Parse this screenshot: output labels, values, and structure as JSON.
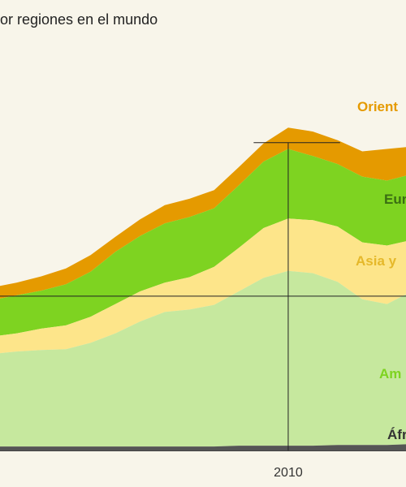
{
  "subtitle": "or regiones en el mundo",
  "colors": {
    "background": "#f8f5ea",
    "orient": "#e59a00",
    "europa": "#7ed321",
    "asia": "#fde58a",
    "america": "#c6e89e",
    "africa": "#555555"
  },
  "chart_data": {
    "type": "area",
    "stacked": true,
    "title": "",
    "xlabel": "",
    "ylabel": "",
    "x": [
      1998,
      1999,
      2000,
      2001,
      2002,
      2003,
      2004,
      2005,
      2006,
      2007,
      2008,
      2009,
      2010,
      2011,
      2012,
      2013,
      2014,
      2015
    ],
    "xlim": [
      1998,
      2015
    ],
    "ylim": [
      0,
      400
    ],
    "x_ticks": [
      {
        "value": 2010,
        "label": "2010"
      }
    ],
    "reference_lines": {
      "horizontal_y": 195,
      "vertical_x": 2010,
      "top_marker": {
        "x_start": 2008.6,
        "x_end": 2012.1,
        "y": 389
      }
    },
    "series": [
      {
        "name": "Áfr",
        "color": "#555555",
        "values": [
          5,
          5,
          5,
          5,
          5,
          5,
          5,
          5,
          5,
          5,
          6,
          6,
          6,
          6,
          7,
          7,
          7,
          8
        ]
      },
      {
        "name": "Am",
        "color": "#c6e89e",
        "values": [
          117,
          120,
          122,
          123,
          131,
          143,
          158,
          170,
          173,
          179,
          195,
          212,
          221,
          218,
          206,
          184,
          178,
          193
        ]
      },
      {
        "name": "Asia y",
        "color": "#fde58a",
        "values": [
          22,
          23,
          27,
          30,
          33,
          37,
          38,
          37,
          41,
          48,
          55,
          63,
          66,
          67,
          70,
          72,
          74,
          65
        ]
      },
      {
        "name": "Eur",
        "color": "#7ed321",
        "values": [
          46,
          48,
          48,
          52,
          57,
          66,
          70,
          75,
          76,
          74,
          79,
          84,
          88,
          81,
          79,
          83,
          82,
          83
        ]
      },
      {
        "name": "Orient",
        "color": "#e59a00",
        "values": [
          16,
          16,
          18,
          20,
          21,
          19,
          21,
          23,
          23,
          23,
          23,
          23,
          27,
          31,
          30,
          32,
          40,
          35
        ]
      }
    ],
    "annotations": {
      "Orient": "Orient",
      "Eur": "Eur",
      "Asia y": "Asia y",
      "Am": "Am",
      "Áfr": "Áfr"
    }
  }
}
